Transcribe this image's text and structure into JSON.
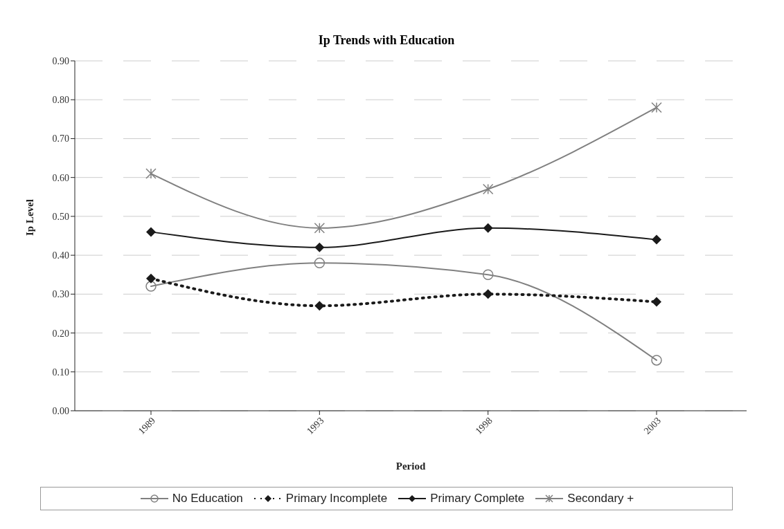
{
  "chart_data": {
    "type": "line",
    "title": "Ip Trends with Education",
    "xlabel": "Period",
    "ylabel": "Ip Level",
    "categories": [
      "1989",
      "1993",
      "1998",
      "2003"
    ],
    "series": [
      {
        "name": "No Education",
        "color": "#808080",
        "values": [
          0.32,
          0.38,
          0.35,
          0.13
        ],
        "marker": "circle",
        "line_style": "solid"
      },
      {
        "name": "Primary Incomplete",
        "color": "#1a1a1a",
        "values": [
          0.34,
          0.27,
          0.3,
          0.28
        ],
        "marker": "diamond",
        "line_style": "dotted"
      },
      {
        "name": "Primary Complete",
        "color": "#1a1a1a",
        "values": [
          0.46,
          0.42,
          0.47,
          0.44
        ],
        "marker": "diamond",
        "line_style": "solid"
      },
      {
        "name": "Secondary +",
        "color": "#808080",
        "values": [
          0.61,
          0.47,
          0.57,
          0.78
        ],
        "marker": "cross",
        "line_style": "solid"
      }
    ],
    "ylim": [
      0,
      0.9
    ],
    "yticks": [
      {
        "value": 0,
        "label": "0.00"
      },
      {
        "value": 0.1,
        "label": "0.10"
      },
      {
        "value": 0.2,
        "label": "0.20"
      },
      {
        "value": 0.3,
        "label": "0.30"
      },
      {
        "value": 0.4,
        "label": "0.40"
      },
      {
        "value": 0.5,
        "label": "0.50"
      },
      {
        "value": 0.6,
        "label": "0.60"
      },
      {
        "value": 0.7,
        "label": "0.70"
      },
      {
        "value": 0.8,
        "label": "0.80"
      },
      {
        "value": 0.9,
        "label": "0.90"
      }
    ],
    "grid": "y",
    "legend": "bottom"
  }
}
